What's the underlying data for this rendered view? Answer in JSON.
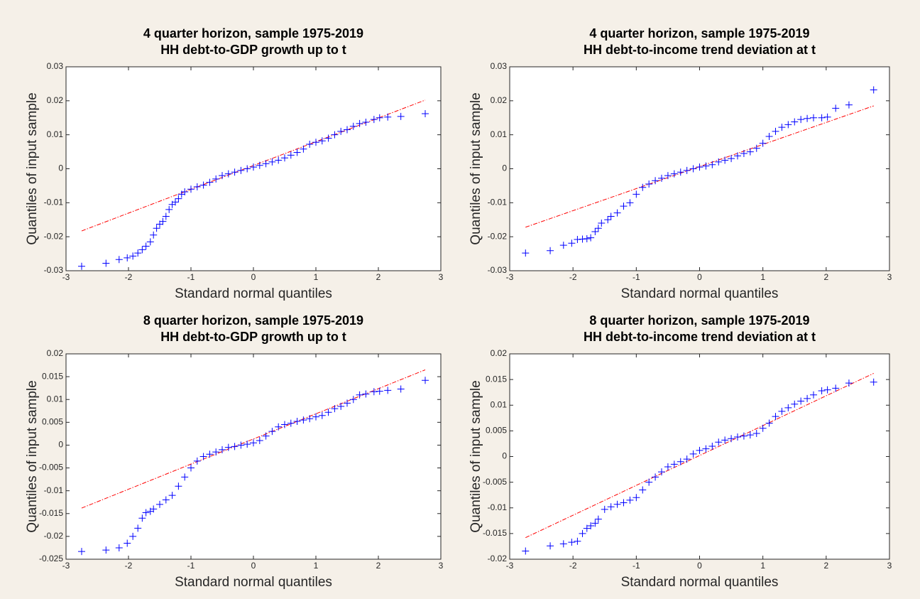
{
  "chart_data": [
    {
      "type": "scatter",
      "title": "4 quarter horizon, sample 1975-2019",
      "subtitle": "HH debt-to-GDP growth up to t",
      "xlabel": "Standard normal quantiles",
      "ylabel": "Quantiles of input sample",
      "xlim": [
        -3,
        3
      ],
      "ylim": [
        -0.03,
        0.03
      ],
      "xticks": [
        -3,
        -2,
        -1,
        0,
        1,
        2,
        3
      ],
      "yticks": [
        -0.03,
        -0.02,
        -0.01,
        0,
        0.01,
        0.02,
        0.03
      ],
      "color": "#0000ff",
      "x": [
        -2.75,
        -2.36,
        -2.15,
        -2.02,
        -1.93,
        -1.85,
        -1.78,
        -1.72,
        -1.65,
        -1.6,
        -1.55,
        -1.5,
        -1.45,
        -1.4,
        -1.35,
        -1.3,
        -1.25,
        -1.2,
        -1.15,
        -1.1,
        -1.0,
        -0.9,
        -0.8,
        -0.7,
        -0.6,
        -0.5,
        -0.4,
        -0.3,
        -0.2,
        -0.1,
        0,
        0.1,
        0.2,
        0.3,
        0.4,
        0.5,
        0.6,
        0.7,
        0.8,
        0.9,
        1.0,
        1.1,
        1.2,
        1.3,
        1.4,
        1.5,
        1.6,
        1.7,
        1.8,
        1.93,
        2.02,
        2.15,
        2.36,
        2.75
      ],
      "y": [
        -0.0287,
        -0.0278,
        -0.0267,
        -0.0262,
        -0.0257,
        -0.0248,
        -0.0238,
        -0.0228,
        -0.0215,
        -0.0195,
        -0.0175,
        -0.0163,
        -0.0155,
        -0.014,
        -0.012,
        -0.0105,
        -0.0098,
        -0.0088,
        -0.0075,
        -0.0068,
        -0.006,
        -0.0053,
        -0.0048,
        -0.004,
        -0.003,
        -0.002,
        -0.0015,
        -0.001,
        -0.0005,
        0,
        0.0005,
        0.001,
        0.0015,
        0.002,
        0.0025,
        0.0032,
        0.004,
        0.0048,
        0.0058,
        0.0072,
        0.0078,
        0.0082,
        0.009,
        0.01,
        0.011,
        0.0115,
        0.0125,
        0.0133,
        0.0137,
        0.0145,
        0.015,
        0.0152,
        0.0154,
        0.0162
      ],
      "ref_line": {
        "x": [
          -2.75,
          2.75
        ],
        "y": [
          -0.0183,
          0.0202
        ],
        "color": "#ff0000"
      }
    },
    {
      "type": "scatter",
      "title": "4 quarter horizon, sample 1975-2019",
      "subtitle": "HH debt-to-income trend deviation at t",
      "xlabel": "Standard normal quantiles",
      "ylabel": "Quantiles of input sample",
      "xlim": [
        -3,
        3
      ],
      "ylim": [
        -0.03,
        0.03
      ],
      "xticks": [
        -3,
        -2,
        -1,
        0,
        1,
        2,
        3
      ],
      "yticks": [
        -0.03,
        -0.02,
        -0.01,
        0,
        0.01,
        0.02,
        0.03
      ],
      "color": "#0000ff",
      "x": [
        -2.75,
        -2.36,
        -2.15,
        -2.02,
        -1.93,
        -1.85,
        -1.78,
        -1.72,
        -1.65,
        -1.6,
        -1.55,
        -1.45,
        -1.4,
        -1.3,
        -1.2,
        -1.1,
        -1.0,
        -0.9,
        -0.8,
        -0.7,
        -0.6,
        -0.5,
        -0.4,
        -0.3,
        -0.2,
        -0.1,
        0,
        0.1,
        0.2,
        0.3,
        0.4,
        0.5,
        0.6,
        0.7,
        0.8,
        0.9,
        1.0,
        1.1,
        1.2,
        1.3,
        1.4,
        1.5,
        1.6,
        1.7,
        1.8,
        1.93,
        2.02,
        2.15,
        2.36,
        2.75
      ],
      "y": [
        -0.0248,
        -0.0241,
        -0.0225,
        -0.0219,
        -0.0208,
        -0.0207,
        -0.0206,
        -0.0203,
        -0.0185,
        -0.0175,
        -0.016,
        -0.015,
        -0.014,
        -0.013,
        -0.011,
        -0.01,
        -0.0075,
        -0.0055,
        -0.0045,
        -0.0035,
        -0.0028,
        -0.002,
        -0.0015,
        -0.001,
        -0.0005,
        0,
        0.0005,
        0.0008,
        0.0012,
        0.002,
        0.0025,
        0.003,
        0.0038,
        0.0045,
        0.005,
        0.006,
        0.0075,
        0.0095,
        0.011,
        0.0122,
        0.013,
        0.0138,
        0.0145,
        0.0148,
        0.015,
        0.015,
        0.0152,
        0.0178,
        0.0188,
        0.0232
      ],
      "ref_line": {
        "x": [
          -2.75,
          2.75
        ],
        "y": [
          -0.0172,
          0.0185
        ],
        "color": "#ff0000"
      }
    },
    {
      "type": "scatter",
      "title": "8 quarter horizon, sample 1975-2019",
      "subtitle": "HH debt-to-GDP growth up to t",
      "xlabel": "Standard normal quantiles",
      "ylabel": "Quantiles of input sample",
      "xlim": [
        -3,
        3
      ],
      "ylim": [
        -0.025,
        0.02
      ],
      "xticks": [
        -3,
        -2,
        -1,
        0,
        1,
        2,
        3
      ],
      "yticks": [
        -0.025,
        -0.02,
        -0.015,
        -0.01,
        -0.005,
        0,
        0.005,
        0.01,
        0.015,
        0.02
      ],
      "color": "#0000ff",
      "x": [
        -2.75,
        -2.36,
        -2.15,
        -2.02,
        -1.93,
        -1.85,
        -1.78,
        -1.72,
        -1.65,
        -1.6,
        -1.5,
        -1.4,
        -1.3,
        -1.2,
        -1.1,
        -1.0,
        -0.9,
        -0.8,
        -0.7,
        -0.6,
        -0.5,
        -0.4,
        -0.3,
        -0.2,
        -0.1,
        0,
        0.1,
        0.2,
        0.3,
        0.4,
        0.5,
        0.6,
        0.7,
        0.8,
        0.9,
        1.0,
        1.1,
        1.2,
        1.3,
        1.4,
        1.5,
        1.6,
        1.7,
        1.8,
        1.93,
        2.02,
        2.15,
        2.36,
        2.75
      ],
      "y": [
        -0.0233,
        -0.023,
        -0.0225,
        -0.0215,
        -0.02,
        -0.0182,
        -0.016,
        -0.0148,
        -0.0145,
        -0.014,
        -0.013,
        -0.012,
        -0.011,
        -0.009,
        -0.007,
        -0.005,
        -0.0035,
        -0.0025,
        -0.002,
        -0.0015,
        -0.001,
        -0.0005,
        -0.0003,
        0,
        0.0002,
        0.0005,
        0.001,
        0.002,
        0.003,
        0.004,
        0.0045,
        0.0048,
        0.0052,
        0.0055,
        0.0058,
        0.0062,
        0.0065,
        0.0072,
        0.008,
        0.0085,
        0.0092,
        0.01,
        0.011,
        0.0112,
        0.0117,
        0.0118,
        0.012,
        0.0123,
        0.0142
      ],
      "ref_line": {
        "x": [
          -2.75,
          2.75
        ],
        "y": [
          -0.0138,
          0.0165
        ],
        "color": "#ff0000"
      }
    },
    {
      "type": "scatter",
      "title": "8 quarter horizon, sample 1975-2019",
      "subtitle": "HH debt-to-income trend deviation at t",
      "xlabel": "Standard normal quantiles",
      "ylabel": "Quantiles of input sample",
      "xlim": [
        -3,
        3
      ],
      "ylim": [
        -0.02,
        0.02
      ],
      "xticks": [
        -3,
        -2,
        -1,
        0,
        1,
        2,
        3
      ],
      "yticks": [
        -0.02,
        -0.015,
        -0.01,
        -0.005,
        0,
        0.005,
        0.01,
        0.015,
        0.02
      ],
      "color": "#0000ff",
      "x": [
        -2.75,
        -2.36,
        -2.15,
        -2.02,
        -1.93,
        -1.85,
        -1.78,
        -1.72,
        -1.65,
        -1.6,
        -1.5,
        -1.4,
        -1.3,
        -1.2,
        -1.1,
        -1.0,
        -0.9,
        -0.8,
        -0.7,
        -0.6,
        -0.5,
        -0.4,
        -0.3,
        -0.2,
        -0.1,
        0,
        0.1,
        0.2,
        0.3,
        0.4,
        0.5,
        0.6,
        0.7,
        0.8,
        0.9,
        1.0,
        1.1,
        1.2,
        1.3,
        1.4,
        1.5,
        1.6,
        1.7,
        1.8,
        1.93,
        2.02,
        2.15,
        2.36,
        2.75
      ],
      "y": [
        -0.0184,
        -0.0174,
        -0.017,
        -0.0167,
        -0.0165,
        -0.015,
        -0.014,
        -0.0135,
        -0.013,
        -0.0122,
        -0.0103,
        -0.0098,
        -0.0093,
        -0.009,
        -0.0085,
        -0.008,
        -0.0065,
        -0.005,
        -0.004,
        -0.003,
        -0.002,
        -0.0015,
        -0.001,
        -0.0005,
        0.0005,
        0.0012,
        0.0015,
        0.002,
        0.0028,
        0.0032,
        0.0035,
        0.0038,
        0.004,
        0.0042,
        0.0045,
        0.0055,
        0.0065,
        0.0078,
        0.0088,
        0.0095,
        0.0102,
        0.0108,
        0.0113,
        0.012,
        0.0128,
        0.013,
        0.0133,
        0.0143,
        0.0145
      ],
      "ref_line": {
        "x": [
          -2.75,
          2.75
        ],
        "y": [
          -0.0158,
          0.0162
        ],
        "color": "#ff0000"
      }
    }
  ]
}
